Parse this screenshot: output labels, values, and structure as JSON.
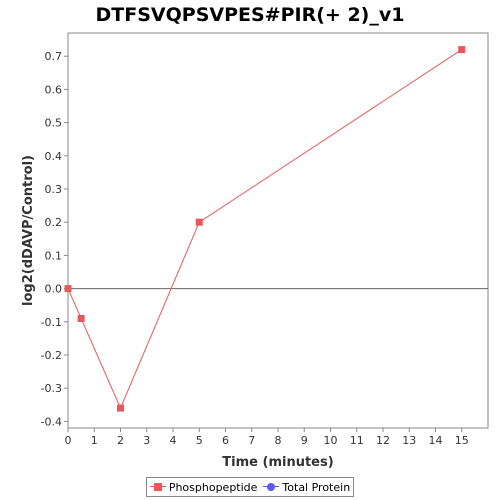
{
  "chart_data": {
    "type": "line",
    "title": "DTFSVQPSVPES#PIR(+ 2)_v1",
    "xlabel": "Time (minutes)",
    "ylabel": "log2(dDAVP/Control)",
    "xlim": [
      0,
      16
    ],
    "ylim": [
      -0.42,
      0.77
    ],
    "x_ticks": [
      0,
      1,
      2,
      3,
      4,
      5,
      6,
      7,
      8,
      9,
      10,
      11,
      12,
      13,
      14,
      15
    ],
    "y_ticks": [
      -0.4,
      -0.3,
      -0.2,
      -0.1,
      0.0,
      0.1,
      0.2,
      0.3,
      0.4,
      0.5,
      0.6,
      0.7
    ],
    "y_tick_labels": [
      "-0.4",
      "-0.3",
      "-0.2",
      "-0.1",
      "0.0",
      "0.1",
      "0.2",
      "0.3",
      "0.4",
      "0.5",
      "0.6",
      "0.7"
    ],
    "grid": false,
    "zero_line": true,
    "legend_position": "bottom",
    "series": [
      {
        "name": "Phosphopeptide",
        "color": "#e8585b",
        "marker": "square",
        "x": [
          0,
          0.5,
          2,
          5,
          15
        ],
        "y": [
          0.0,
          -0.09,
          -0.36,
          0.2,
          0.72
        ]
      },
      {
        "name": "Total Protein",
        "color": "#5b5bf0",
        "marker": "circle",
        "x": [],
        "y": []
      }
    ]
  }
}
